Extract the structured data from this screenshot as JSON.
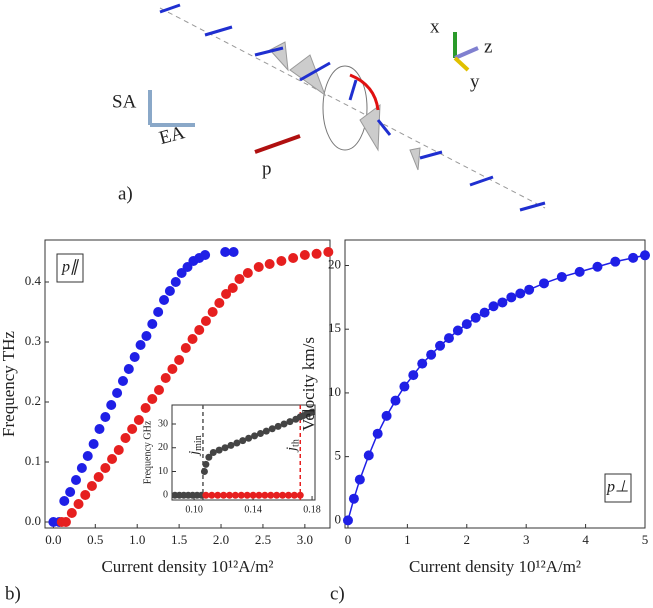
{
  "diagram": {
    "axis_x": "x",
    "axis_z": "z",
    "axis_y": "y",
    "sa": "SA",
    "ea": "EA",
    "p": "p",
    "panel": "a)"
  },
  "panels": [
    "b)",
    "c)"
  ],
  "chart_data": [
    {
      "type": "scatter",
      "y_label": "Frequency THz",
      "x_label": "Current density 10¹²A/m²",
      "label": "p∥",
      "xlim": [
        -0.1,
        3.3
      ],
      "ylim": [
        -0.01,
        0.47
      ],
      "xticks": [
        {
          "value": 0,
          "label": "0.0"
        },
        {
          "value": 0.5,
          "label": "0.5"
        },
        {
          "value": 1,
          "label": "1.0"
        },
        {
          "value": 1.5,
          "label": "1.5"
        },
        {
          "value": 2,
          "label": "2.0"
        },
        {
          "value": 2.5,
          "label": "2.5"
        },
        {
          "value": 3,
          "label": "3.0"
        }
      ],
      "yticks": [
        {
          "value": 0,
          "label": "0.0"
        },
        {
          "value": 0.1,
          "label": "0.1"
        },
        {
          "value": 0.2,
          "label": "0.2"
        },
        {
          "value": 0.3,
          "label": "0.3"
        },
        {
          "value": 0.4,
          "label": "0.4"
        }
      ],
      "series": [
        {
          "color": "#1f1fe6",
          "x": [
            0,
            0.07,
            0.13,
            0.2,
            0.27,
            0.34,
            0.41,
            0.48,
            0.55,
            0.62,
            0.69,
            0.76,
            0.83,
            0.9,
            0.97,
            1.04,
            1.11,
            1.18,
            1.25,
            1.32,
            1.39,
            1.46,
            1.53,
            1.6,
            1.67,
            1.74,
            1.81,
            2.05,
            2.15
          ],
          "values": [
            0,
            0,
            0.035,
            0.05,
            0.07,
            0.09,
            0.11,
            0.13,
            0.155,
            0.175,
            0.195,
            0.215,
            0.235,
            0.255,
            0.275,
            0.295,
            0.31,
            0.33,
            0.35,
            0.37,
            0.385,
            0.4,
            0.415,
            0.425,
            0.435,
            0.44,
            0.445,
            0.45,
            0.45
          ]
        },
        {
          "color": "#e61f1f",
          "x": [
            0.1,
            0.15,
            0.22,
            0.3,
            0.38,
            0.46,
            0.54,
            0.62,
            0.7,
            0.78,
            0.86,
            0.94,
            1.02,
            1.1,
            1.18,
            1.26,
            1.34,
            1.42,
            1.5,
            1.58,
            1.66,
            1.74,
            1.82,
            1.9,
            1.98,
            2.06,
            2.14,
            2.22,
            2.32,
            2.45,
            2.58,
            2.72,
            2.86,
            3.0,
            3.14,
            3.28
          ],
          "values": [
            0,
            0,
            0.015,
            0.03,
            0.045,
            0.06,
            0.075,
            0.09,
            0.105,
            0.12,
            0.14,
            0.155,
            0.17,
            0.19,
            0.205,
            0.22,
            0.24,
            0.255,
            0.27,
            0.29,
            0.305,
            0.32,
            0.335,
            0.35,
            0.365,
            0.38,
            0.39,
            0.405,
            0.415,
            0.425,
            0.43,
            0.435,
            0.44,
            0.445,
            0.447,
            0.45
          ]
        }
      ]
    },
    {
      "type": "scatter",
      "y_label": "Frequency GHz",
      "xlim": [
        0.085,
        0.182
      ],
      "ylim": [
        -2,
        38
      ],
      "xticks": [
        {
          "value": 0.1,
          "label": "0.10"
        },
        0.14,
        0.18
      ],
      "yticks": [
        0,
        10,
        20,
        30
      ],
      "annotations": [
        {
          "x": 0.106,
          "text": "j",
          "sub": "min",
          "color": "#555555"
        },
        {
          "x": 0.172,
          "text": "j",
          "sub": "th",
          "color": "#e61f1f"
        }
      ],
      "series": [
        {
          "color": "#444444",
          "x": [
            0.087,
            0.09,
            0.093,
            0.096,
            0.099,
            0.102,
            0.105,
            0.107,
            0.108,
            0.11,
            0.113,
            0.117,
            0.121,
            0.125,
            0.129,
            0.133,
            0.137,
            0.141,
            0.145,
            0.149,
            0.153,
            0.157,
            0.161,
            0.165,
            0.169,
            0.172,
            0.174,
            0.176,
            0.178,
            0.18
          ],
          "values": [
            0,
            0,
            0,
            0,
            0,
            0,
            0,
            10,
            13,
            16,
            18,
            19,
            20,
            21,
            22,
            23,
            24,
            25,
            26,
            27,
            28,
            29,
            30,
            31,
            32,
            33,
            33.5,
            34,
            34.5,
            35
          ]
        },
        {
          "color": "#e61f1f",
          "x": [
            0.108,
            0.112,
            0.116,
            0.12,
            0.124,
            0.128,
            0.132,
            0.136,
            0.14,
            0.144,
            0.148,
            0.152,
            0.156,
            0.16,
            0.164,
            0.168,
            0.172
          ],
          "values": [
            0,
            0,
            0,
            0,
            0,
            0,
            0,
            0,
            0,
            0,
            0,
            0,
            0,
            0,
            0,
            0,
            0
          ]
        }
      ]
    },
    {
      "type": "scatter",
      "y_label": "Velocity km/s",
      "x_label": "Current density 10¹²A/m²",
      "label": "p⊥",
      "fit_line": true,
      "xlim": [
        -0.05,
        5
      ],
      "ylim": [
        -0.6,
        22
      ],
      "xticks": [
        0,
        1,
        2,
        3,
        4,
        5
      ],
      "yticks": [
        0,
        5,
        10,
        15,
        20
      ],
      "series": [
        {
          "color": "#1f1fe6",
          "x": [
            0,
            0.1,
            0.2,
            0.35,
            0.5,
            0.65,
            0.8,
            0.95,
            1.1,
            1.25,
            1.4,
            1.55,
            1.7,
            1.85,
            2.0,
            2.15,
            2.3,
            2.45,
            2.6,
            2.75,
            2.9,
            3.05,
            3.3,
            3.6,
            3.9,
            4.2,
            4.5,
            4.8,
            5.0
          ],
          "values": [
            0,
            1.7,
            3.2,
            5.1,
            6.8,
            8.2,
            9.4,
            10.5,
            11.4,
            12.3,
            13.0,
            13.7,
            14.3,
            14.9,
            15.4,
            15.9,
            16.3,
            16.8,
            17.1,
            17.5,
            17.8,
            18.1,
            18.6,
            19.1,
            19.5,
            19.9,
            20.3,
            20.6,
            20.8
          ]
        }
      ]
    }
  ]
}
